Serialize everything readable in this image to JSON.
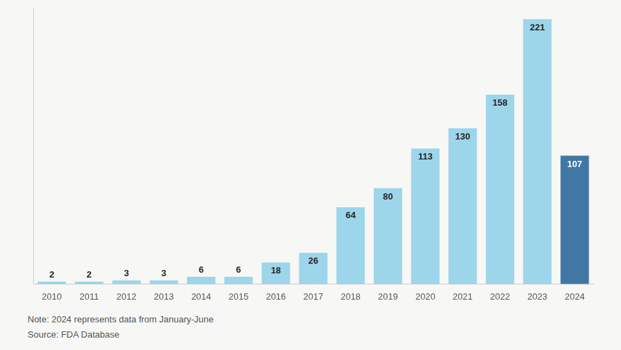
{
  "chart_data": {
    "type": "bar",
    "categories": [
      "2010",
      "2011",
      "2012",
      "2013",
      "2014",
      "2015",
      "2016",
      "2017",
      "2018",
      "2019",
      "2020",
      "2021",
      "2022",
      "2023",
      "2024"
    ],
    "values": [
      2,
      2,
      3,
      3,
      6,
      6,
      18,
      26,
      64,
      80,
      113,
      130,
      158,
      221,
      107
    ],
    "colors": [
      "#9dd5ea",
      "#9dd5ea",
      "#9dd5ea",
      "#9dd5ea",
      "#9dd5ea",
      "#9dd5ea",
      "#9dd5ea",
      "#9dd5ea",
      "#9dd5ea",
      "#9dd5ea",
      "#9dd5ea",
      "#9dd5ea",
      "#9dd5ea",
      "#9dd5ea",
      "#4177a4"
    ],
    "ylim": [
      0,
      230
    ],
    "grid": false,
    "data_labels": true,
    "tick_labels": "x",
    "annotations": [
      "Note: 2024 represents data from January-June",
      "Source: FDA Database"
    ]
  }
}
